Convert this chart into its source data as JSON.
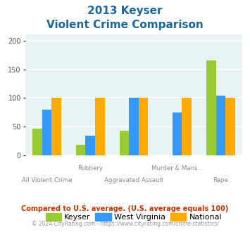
{
  "title_line1": "2013 Keyser",
  "title_line2": "Violent Crime Comparison",
  "categories": [
    "All Violent Crime",
    "Robbery",
    "Aggravated Assault",
    "Murder & Mans...",
    "Rape"
  ],
  "keyser": [
    47,
    19,
    43,
    0,
    165
  ],
  "west_virginia": [
    80,
    34,
    100,
    75,
    104
  ],
  "national": [
    100,
    100,
    100,
    100,
    100
  ],
  "colors": {
    "keyser": "#99cc33",
    "west_virginia": "#3399ff",
    "national": "#ffaa00"
  },
  "ylim": [
    0,
    210
  ],
  "yticks": [
    0,
    50,
    100,
    150,
    200
  ],
  "bg_color": "#e8f4f4",
  "grid_color": "#ffffff",
  "title_color": "#1a6699",
  "xlabel_color": "#888888",
  "legend_labels": [
    "Keyser",
    "West Virginia",
    "National"
  ],
  "footnote1": "Compared to U.S. average. (U.S. average equals 100)",
  "footnote2": "© 2024 CityRating.com - https://www.cityrating.com/crime-statistics/",
  "footnote1_color": "#cc3300",
  "footnote2_color": "#999999"
}
